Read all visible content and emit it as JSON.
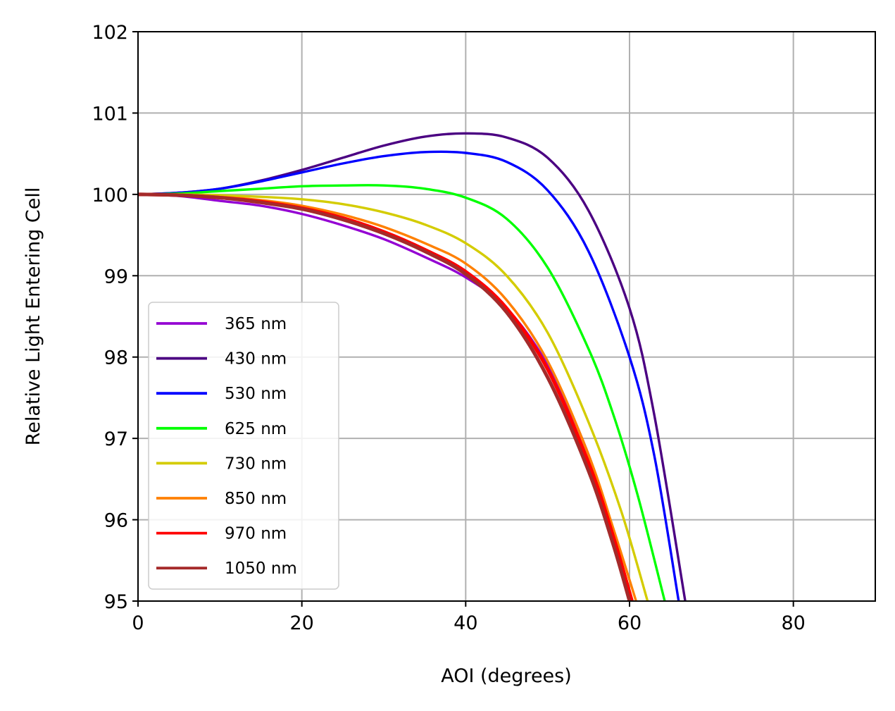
{
  "chart_data": {
    "type": "line",
    "xlabel": "AOI (degrees)",
    "ylabel": "Relative Light Entering Cell",
    "xlim": [
      0,
      90
    ],
    "ylim": [
      95,
      102
    ],
    "xticks": [
      0,
      20,
      40,
      60,
      80
    ],
    "xtick_labels": [
      "0",
      "20",
      "40",
      "60",
      "80"
    ],
    "yticks": [
      95,
      96,
      97,
      98,
      99,
      100,
      101,
      102
    ],
    "ytick_labels": [
      "95",
      "96",
      "97",
      "98",
      "99",
      "100",
      "101",
      "102"
    ],
    "grid": true,
    "legend_position": "lower-left",
    "series": [
      {
        "name": "365 nm",
        "color": "#9400d3",
        "x": [
          0,
          5,
          10,
          15,
          20,
          25,
          30,
          35,
          40,
          45,
          50,
          55,
          58,
          60
        ],
        "y": [
          100,
          99.98,
          99.92,
          99.86,
          99.76,
          99.62,
          99.45,
          99.23,
          98.98,
          98.6,
          97.9,
          96.8,
          95.8,
          95
        ]
      },
      {
        "name": "430 nm",
        "color": "#4b0082",
        "x": [
          0,
          5,
          10,
          15,
          20,
          25,
          30,
          35,
          40,
          45,
          50,
          55,
          60,
          63,
          66.8
        ],
        "y": [
          100,
          100.02,
          100.07,
          100.17,
          100.3,
          100.45,
          100.6,
          100.71,
          100.75,
          100.7,
          100.45,
          99.8,
          98.6,
          97.3,
          95
        ]
      },
      {
        "name": "530 nm",
        "color": "#0000ff",
        "x": [
          0,
          5,
          10,
          15,
          20,
          25,
          30,
          35,
          40,
          45,
          50,
          55,
          60,
          63,
          66
        ],
        "y": [
          100,
          100.02,
          100.07,
          100.16,
          100.27,
          100.38,
          100.47,
          100.52,
          100.51,
          100.4,
          100.05,
          99.3,
          98.0,
          96.8,
          95
        ]
      },
      {
        "name": "625 nm",
        "color": "#00ff00",
        "x": [
          0,
          5,
          10,
          15,
          20,
          25,
          30,
          35,
          40,
          45,
          50,
          55,
          58,
          61,
          64.3
        ],
        "y": [
          100,
          100.01,
          100.04,
          100.07,
          100.1,
          100.11,
          100.11,
          100.07,
          99.96,
          99.7,
          99.1,
          98.1,
          97.3,
          96.3,
          95
        ]
      },
      {
        "name": "730 nm",
        "color": "#d4cc00",
        "x": [
          0,
          5,
          10,
          15,
          20,
          25,
          30,
          35,
          40,
          45,
          50,
          55,
          59,
          62.2
        ],
        "y": [
          100,
          100,
          99.99,
          99.97,
          99.94,
          99.88,
          99.78,
          99.63,
          99.4,
          99.0,
          98.3,
          97.2,
          96.1,
          95
        ]
      },
      {
        "name": "850 nm",
        "color": "#ff8000",
        "x": [
          0,
          5,
          10,
          15,
          20,
          25,
          30,
          35,
          40,
          45,
          50,
          55,
          58,
          60.8
        ],
        "y": [
          100,
          99.99,
          99.97,
          99.93,
          99.86,
          99.75,
          99.6,
          99.4,
          99.15,
          98.7,
          97.95,
          96.8,
          95.9,
          95
        ]
      },
      {
        "name": "970 nm",
        "color": "#ff0000",
        "x": [
          0,
          5,
          10,
          15,
          20,
          25,
          30,
          35,
          40,
          45,
          50,
          55,
          58,
          60.3
        ],
        "y": [
          100,
          99.99,
          99.96,
          99.91,
          99.83,
          99.71,
          99.54,
          99.32,
          99.05,
          98.6,
          97.85,
          96.7,
          95.8,
          95
        ]
      },
      {
        "name": "1050 nm",
        "color": "#a52a2a",
        "x": [
          0,
          5,
          10,
          15,
          20,
          25,
          30,
          35,
          40,
          45,
          50,
          55,
          58,
          60
        ],
        "y": [
          100,
          99.99,
          99.96,
          99.9,
          99.82,
          99.69,
          99.52,
          99.3,
          99.02,
          98.55,
          97.75,
          96.6,
          95.7,
          95
        ]
      }
    ]
  }
}
